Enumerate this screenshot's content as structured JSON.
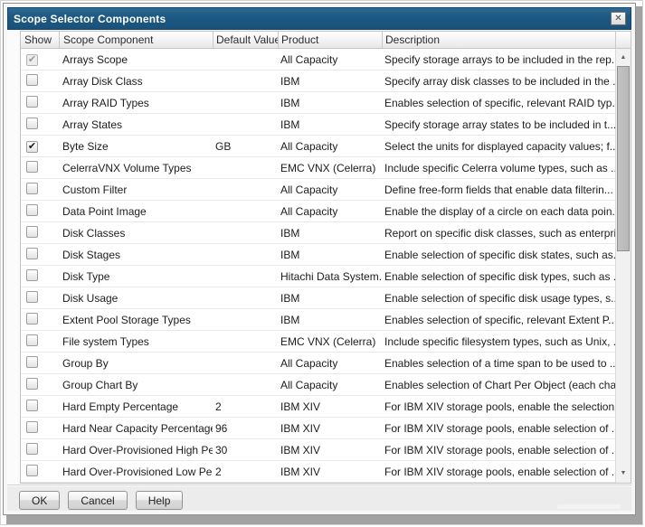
{
  "window": {
    "title": "Scope Selector Components"
  },
  "icons": {
    "close": "✕",
    "check": "✔",
    "scroll_up": "▲",
    "scroll_down": "▼"
  },
  "colors": {
    "titlebar": "#1e5a84",
    "header_border": "#c6c6c6",
    "row_border": "#e9e9e9"
  },
  "table": {
    "columns": [
      "Show",
      "Scope Component",
      "Default Value",
      "Product",
      "Description"
    ],
    "rows": [
      {
        "state": "disabled-checked",
        "component": "Arrays Scope",
        "default": "",
        "product": "All Capacity",
        "description": "Specify storage arrays to be included in the rep..."
      },
      {
        "state": "unchecked",
        "component": "Array Disk Class",
        "default": "",
        "product": "IBM",
        "description": "Specify array disk classes to be included in the ..."
      },
      {
        "state": "unchecked",
        "component": "Array RAID Types",
        "default": "",
        "product": "IBM",
        "description": "Enables selection of specific, relevant RAID typ..."
      },
      {
        "state": "unchecked",
        "component": "Array States",
        "default": "",
        "product": "IBM",
        "description": "Specify storage array states to be included in t..."
      },
      {
        "state": "checked",
        "component": "Byte Size",
        "default": "GB",
        "product": "All Capacity",
        "description": "Select the units for displayed capacity values; f..."
      },
      {
        "state": "unchecked",
        "component": "CelerraVNX Volume Types",
        "default": "",
        "product": "EMC VNX (Celerra)",
        "description": "Include specific Celerra volume types, such as ..."
      },
      {
        "state": "unchecked",
        "component": "Custom Filter",
        "default": "",
        "product": "All Capacity",
        "description": "Define free-form fields that enable data filterin..."
      },
      {
        "state": "unchecked",
        "component": "Data Point Image",
        "default": "",
        "product": "All Capacity",
        "description": "Enable the display of a circle on each data poin..."
      },
      {
        "state": "unchecked",
        "component": "Disk Classes",
        "default": "",
        "product": "IBM",
        "description": "Report on specific disk classes, such as enterpri..."
      },
      {
        "state": "unchecked",
        "component": "Disk Stages",
        "default": "",
        "product": "IBM",
        "description": "Enable selection of specific disk states, such as..."
      },
      {
        "state": "unchecked",
        "component": "Disk Type",
        "default": "",
        "product": "Hitachi Data System...",
        "description": "Enable selection of specific disk types, such as ..."
      },
      {
        "state": "unchecked",
        "component": "Disk Usage",
        "default": "",
        "product": "IBM",
        "description": "Enable selection of specific disk usage types, s..."
      },
      {
        "state": "unchecked",
        "component": "Extent Pool Storage Types",
        "default": "",
        "product": "IBM",
        "description": "Enables selection of specific, relevant Extent P..."
      },
      {
        "state": "unchecked",
        "component": "File system Types",
        "default": "",
        "product": "EMC VNX (Celerra)",
        "description": "Include specific filesystem types, such as Unix, ..."
      },
      {
        "state": "unchecked",
        "component": "Group By",
        "default": "",
        "product": "All Capacity",
        "description": "Enables selection of a time span to be used to ..."
      },
      {
        "state": "unchecked",
        "component": "Group Chart By",
        "default": "",
        "product": "All Capacity",
        "description": "Enables selection of Chart Per Object (each cha..."
      },
      {
        "state": "unchecked",
        "component": "Hard Empty Percentage",
        "default": "2",
        "product": "IBM XIV",
        "description": "For IBM XIV storage pools, enable the selection..."
      },
      {
        "state": "unchecked",
        "component": "Hard Near Capacity Percentage",
        "default": "96",
        "product": "IBM XIV",
        "description": "For IBM XIV storage pools, enable selection of ..."
      },
      {
        "state": "unchecked",
        "component": "Hard Over-Provisioned High Pe...",
        "default": "30",
        "product": "IBM XIV",
        "description": "For IBM XIV storage pools, enable selection of ..."
      },
      {
        "state": "unchecked",
        "component": "Hard Over-Provisioned Low Per...",
        "default": "2",
        "product": "IBM XIV",
        "description": "For IBM XIV storage pools, enable selection of ..."
      }
    ]
  },
  "footer": {
    "ok": "OK",
    "cancel": "Cancel",
    "help": "Help"
  }
}
